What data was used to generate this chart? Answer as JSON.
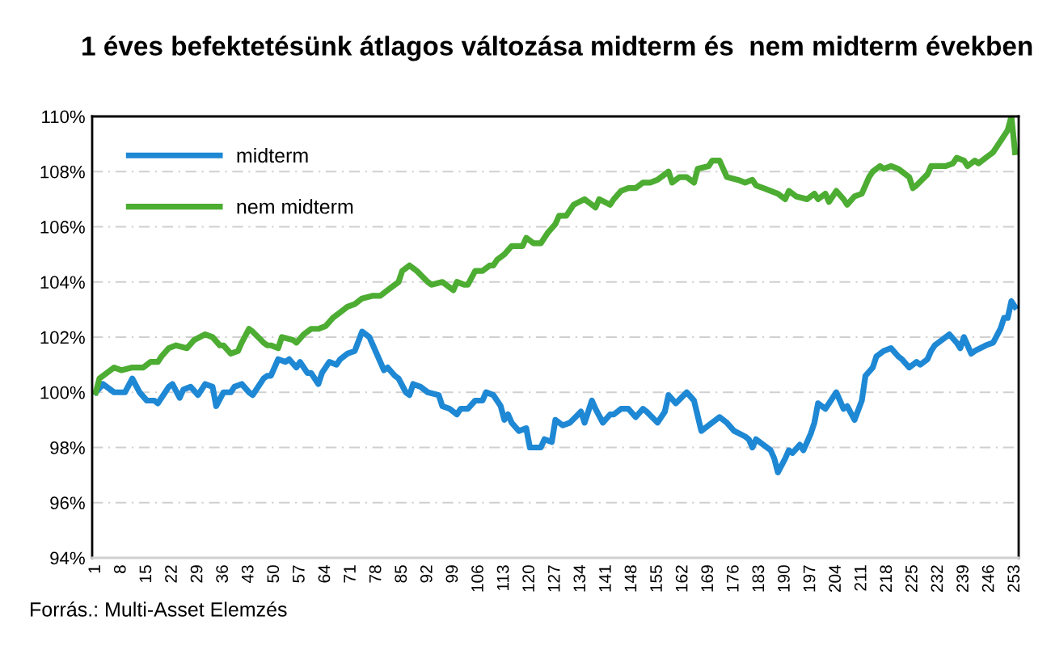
{
  "chart_data": {
    "type": "line",
    "title": "1 éves befektetésünk átlagos változása midterm és  nem midterm években",
    "annotations": [
      "Forrás.: Multi-Asset Elemzés"
    ],
    "series": [
      {
        "name": "midterm",
        "color": "#1e88d4",
        "x": [
          1,
          3,
          6,
          9,
          11,
          13,
          15,
          17,
          18,
          21,
          22,
          24,
          25,
          27,
          29,
          31,
          33,
          34,
          36,
          38,
          39,
          41,
          43,
          44,
          47,
          48,
          49,
          51,
          53,
          54,
          56,
          57,
          59,
          60,
          62,
          63,
          65,
          67,
          68,
          70,
          72,
          74,
          76,
          78,
          80,
          81,
          83,
          84,
          86,
          87,
          88,
          90,
          92,
          95,
          96,
          98,
          100,
          101,
          103,
          105,
          107,
          108,
          110,
          112,
          113,
          114,
          115,
          117,
          119,
          120,
          123,
          124,
          126,
          127,
          129,
          131,
          134,
          135,
          137,
          138,
          140,
          142,
          143,
          145,
          147,
          149,
          151,
          152,
          155,
          157,
          158,
          160,
          163,
          165,
          167,
          169,
          172,
          174,
          176,
          179,
          180,
          181,
          182,
          184,
          186,
          187,
          188,
          190,
          191,
          192,
          194,
          195,
          197,
          198,
          199,
          201,
          202,
          204,
          206,
          207,
          209,
          211,
          212,
          214,
          215,
          217,
          219,
          221,
          222,
          224,
          226,
          227,
          229,
          230,
          231,
          233,
          235,
          237,
          238,
          239,
          241,
          242,
          245,
          247,
          249,
          250,
          251,
          252,
          253
        ],
        "values": [
          100.0,
          100.3,
          100.0,
          100.0,
          100.5,
          100.0,
          99.7,
          99.7,
          99.6,
          100.2,
          100.3,
          99.8,
          100.1,
          100.2,
          99.9,
          100.3,
          100.2,
          99.5,
          100.0,
          100.0,
          100.2,
          100.3,
          100.0,
          99.9,
          100.5,
          100.6,
          100.6,
          101.2,
          101.1,
          101.2,
          100.9,
          101.1,
          100.7,
          100.7,
          100.3,
          100.7,
          101.1,
          101.0,
          101.2,
          101.4,
          101.5,
          102.2,
          102.0,
          101.4,
          100.8,
          100.9,
          100.6,
          100.5,
          100.0,
          99.9,
          100.3,
          100.2,
          100.0,
          99.9,
          99.5,
          99.4,
          99.2,
          99.4,
          99.4,
          99.7,
          99.7,
          100.0,
          99.9,
          99.5,
          99.0,
          99.2,
          98.9,
          98.6,
          98.7,
          98.0,
          98.0,
          98.3,
          98.2,
          99.0,
          98.8,
          98.9,
          99.3,
          98.9,
          99.7,
          99.4,
          98.9,
          99.2,
          99.2,
          99.4,
          99.4,
          99.1,
          99.4,
          99.3,
          98.9,
          99.3,
          99.9,
          99.6,
          100.0,
          99.7,
          98.6,
          98.8,
          99.1,
          98.9,
          98.6,
          98.4,
          98.3,
          98.0,
          98.3,
          98.1,
          97.9,
          97.6,
          97.1,
          97.6,
          97.9,
          97.8,
          98.1,
          97.9,
          98.5,
          98.9,
          99.6,
          99.4,
          99.6,
          100.0,
          99.4,
          99.5,
          99.0,
          99.7,
          100.6,
          100.9,
          101.3,
          101.5,
          101.6,
          101.3,
          101.2,
          100.9,
          101.1,
          101.0,
          101.2,
          101.5,
          101.7,
          101.9,
          102.1,
          101.8,
          101.6,
          102.0,
          101.4,
          101.5,
          101.7,
          101.8,
          102.3,
          102.7,
          102.7,
          103.3,
          103.1
        ]
      },
      {
        "name": "nem midterm",
        "color": "#4cad32",
        "x": [
          1,
          2,
          4,
          6,
          8,
          11,
          14,
          16,
          18,
          19,
          21,
          23,
          26,
          28,
          31,
          33,
          35,
          36,
          38,
          40,
          41,
          43,
          44,
          47,
          48,
          49,
          51,
          52,
          55,
          56,
          58,
          60,
          62,
          64,
          66,
          68,
          70,
          72,
          74,
          77,
          79,
          81,
          84,
          85,
          87,
          89,
          92,
          93,
          96,
          97,
          99,
          100,
          102,
          103,
          105,
          107,
          109,
          110,
          111,
          113,
          115,
          118,
          119,
          121,
          123,
          125,
          127,
          128,
          130,
          132,
          135,
          136,
          138,
          139,
          142,
          143,
          145,
          147,
          149,
          151,
          153,
          155,
          158,
          159,
          161,
          163,
          165,
          166,
          169,
          170,
          172,
          174,
          177,
          179,
          181,
          182,
          184,
          186,
          188,
          190,
          191,
          193,
          196,
          198,
          199,
          201,
          202,
          204,
          206,
          207,
          209,
          211,
          213,
          214,
          216,
          217,
          219,
          221,
          222,
          224,
          225,
          226,
          229,
          230,
          232,
          234,
          236,
          237,
          239,
          240,
          242,
          243,
          245,
          247,
          249,
          251,
          252,
          253
        ],
        "values": [
          100.0,
          100.5,
          100.7,
          100.9,
          100.8,
          100.9,
          100.9,
          101.1,
          101.1,
          101.3,
          101.6,
          101.7,
          101.6,
          101.9,
          102.1,
          102.0,
          101.7,
          101.7,
          101.4,
          101.5,
          101.8,
          102.3,
          102.2,
          101.8,
          101.7,
          101.7,
          101.6,
          102.0,
          101.9,
          101.8,
          102.1,
          102.3,
          102.3,
          102.4,
          102.7,
          102.9,
          103.1,
          103.2,
          103.4,
          103.5,
          103.5,
          103.7,
          104.0,
          104.4,
          104.6,
          104.4,
          104.0,
          103.9,
          104.0,
          103.9,
          103.7,
          104.0,
          103.9,
          103.9,
          104.4,
          104.4,
          104.6,
          104.6,
          104.8,
          105.0,
          105.3,
          105.3,
          105.6,
          105.4,
          105.4,
          105.8,
          106.1,
          106.4,
          106.4,
          106.8,
          107.0,
          106.9,
          106.7,
          107.0,
          106.8,
          107.0,
          107.3,
          107.4,
          107.4,
          107.6,
          107.6,
          107.7,
          108.0,
          107.6,
          107.8,
          107.8,
          107.6,
          108.1,
          108.2,
          108.4,
          108.4,
          107.8,
          107.7,
          107.6,
          107.7,
          107.5,
          107.4,
          107.3,
          107.2,
          107.0,
          107.3,
          107.1,
          107.0,
          107.2,
          107.0,
          107.2,
          106.9,
          107.3,
          107.0,
          106.8,
          107.1,
          107.2,
          107.8,
          108.0,
          108.2,
          108.1,
          108.2,
          108.1,
          108.0,
          107.8,
          107.4,
          107.5,
          107.9,
          108.2,
          108.2,
          108.2,
          108.3,
          108.5,
          108.4,
          108.2,
          108.4,
          108.3,
          108.5,
          108.7,
          109.1,
          109.5,
          110.0,
          108.7
        ]
      }
    ],
    "xticks": [
      1,
      8,
      15,
      22,
      29,
      36,
      43,
      50,
      57,
      64,
      71,
      78,
      85,
      92,
      99,
      106,
      113,
      120,
      127,
      134,
      141,
      148,
      155,
      162,
      169,
      176,
      183,
      190,
      197,
      204,
      211,
      218,
      225,
      232,
      239,
      246,
      253
    ],
    "xlim": [
      0,
      254
    ],
    "ylim": [
      94,
      110
    ],
    "yticks": [
      {
        "value": 94,
        "label": "94%"
      },
      {
        "value": 96,
        "label": "96%"
      },
      {
        "value": 98,
        "label": "98%"
      },
      {
        "value": 100,
        "label": "100%"
      },
      {
        "value": 102,
        "label": "102%"
      },
      {
        "value": 104,
        "label": "104%"
      },
      {
        "value": 106,
        "label": "106%"
      },
      {
        "value": 108,
        "label": "108%"
      },
      {
        "value": 110,
        "label": "110%"
      }
    ],
    "grid": "y",
    "legend": "top left",
    "line_style": "solid",
    "marker": "none"
  }
}
